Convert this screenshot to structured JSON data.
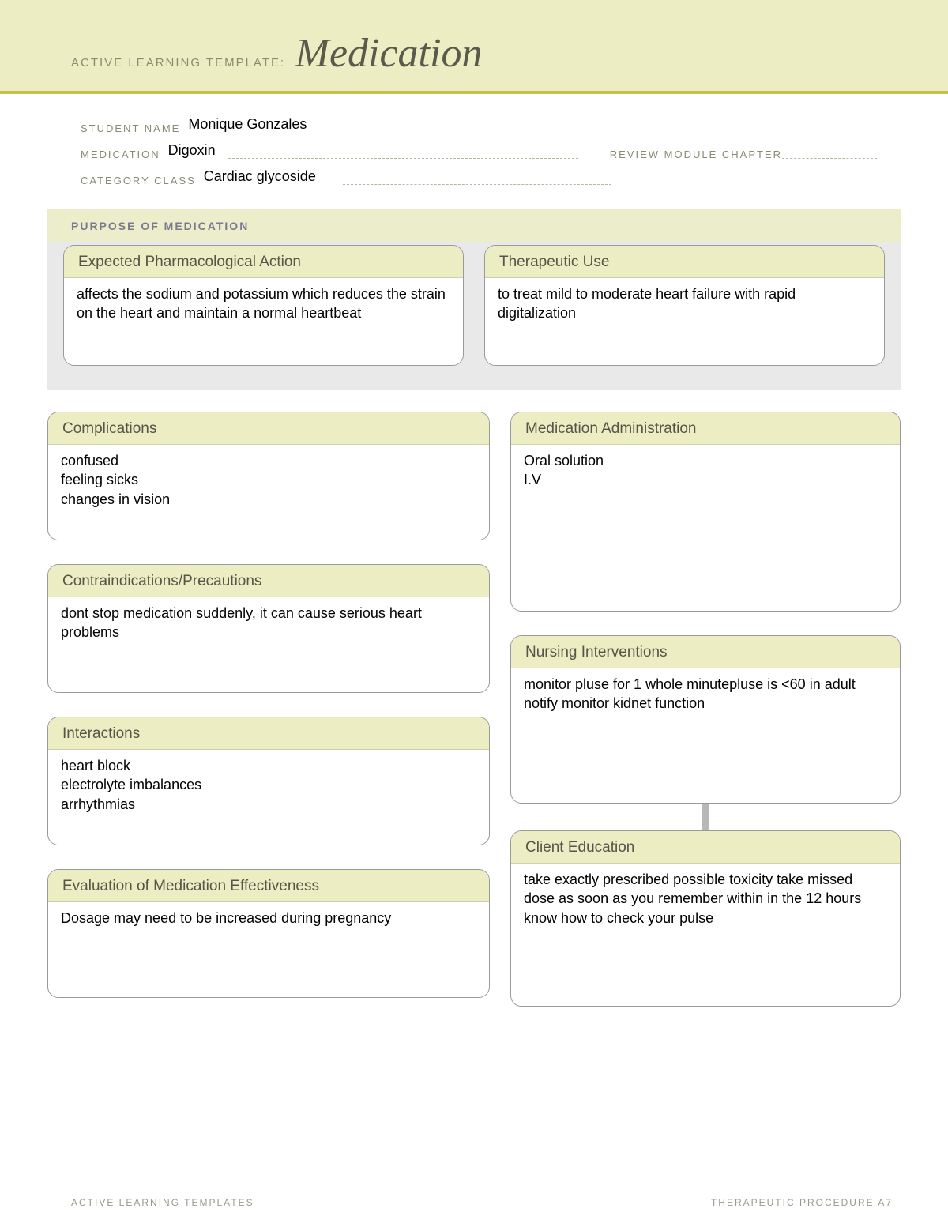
{
  "header": {
    "template_label": "ACTIVE LEARNING TEMPLATE:",
    "title": "Medication"
  },
  "fields": {
    "student_name_label": "STUDENT NAME",
    "student_name": "Monique Gonzales",
    "medication_label": "MEDICATION",
    "medication": "Digoxin",
    "review_label": "REVIEW MODULE CHAPTER",
    "category_label": "CATEGORY CLASS",
    "category": "Cardiac glycoside"
  },
  "purpose": {
    "section_label": "PURPOSE OF MEDICATION",
    "action": {
      "title": "Expected Pharmacological Action",
      "body": "affects the sodium and potassium which reduces the strain on the heart and maintain a normal heartbeat"
    },
    "use": {
      "title": "Therapeutic Use",
      "body": "to treat mild to moderate heart failure with rapid digitalization"
    }
  },
  "complications": {
    "title": "Complications",
    "body": "confused\nfeeling sicks\nchanges in vision"
  },
  "admin": {
    "title": "Medication Administration",
    "body": "Oral solution\nI.V"
  },
  "contra": {
    "title": "Contraindications/Precautions",
    "body": "dont stop medication suddenly, it can cause serious heart problems"
  },
  "interactions": {
    "title": "Interactions",
    "body": "heart block\nelectrolyte imbalances\narrhythmias"
  },
  "evaluation": {
    "title": "Evaluation of Medication Effectiveness",
    "body": "Dosage may need to be increased during pregnancy"
  },
  "nursing": {
    "title": "Nursing Interventions",
    "body": "monitor pluse for 1 whole minutepluse is <60 in adult notify monitor kidnet function"
  },
  "client": {
    "title": "Client Education",
    "body": "take exactly prescribed possible toxicity take missed dose as soon as you remember within in the 12 hours know how to check your pulse"
  },
  "footer": {
    "left": "ACTIVE LEARNING TEMPLATES",
    "right": "THERAPEUTIC PROCEDURE   A7"
  },
  "colors": {
    "band": "#ecedc3",
    "accent": "#c3c14a",
    "grey_band": "#e9e9e9",
    "border": "#9a9a9a"
  }
}
